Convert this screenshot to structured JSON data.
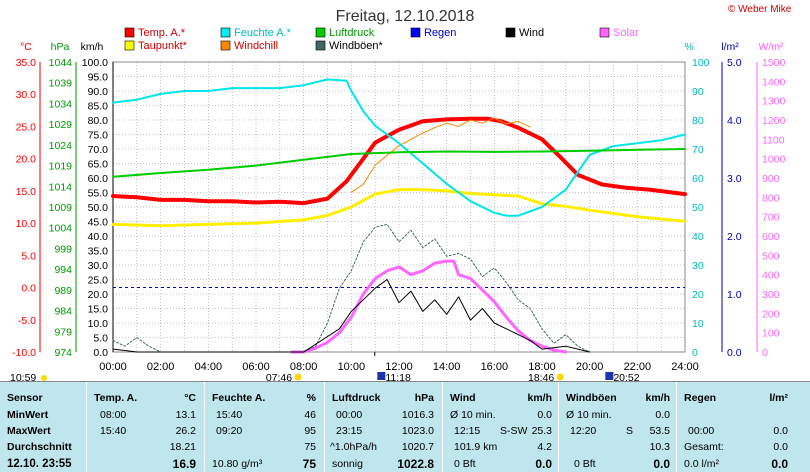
{
  "brand": "© Weber Mike",
  "chart_data": {
    "type": "line",
    "title": "Freitag, 12.10.2018",
    "x_range": [
      "00:00",
      "24:00"
    ],
    "x_ticks": [
      "00:00",
      "02:00",
      "04:00",
      "06:00",
      "08:00",
      "10:00",
      "12:00",
      "14:00",
      "16:00",
      "18:00",
      "20:00",
      "22:00",
      "24:00"
    ],
    "axes": {
      "temp": {
        "unit": "°C",
        "min": -10,
        "max": 35,
        "ticks": [
          "35.0",
          "30.0",
          "25.0",
          "20.0",
          "15.0",
          "10.0",
          "5.0",
          "0.0",
          "-5.0",
          "-10.0"
        ],
        "color": "#ff0000"
      },
      "pressure": {
        "unit": "hPa",
        "min": 974,
        "max": 1044,
        "ticks": [
          "1044",
          "1039",
          "1034",
          "1029",
          "1024",
          "1019",
          "1014",
          "1009",
          "1004",
          "999",
          "994",
          "989",
          "984",
          "979",
          "974"
        ],
        "color": "#00aa00"
      },
      "wind": {
        "unit": "km/h",
        "min": 0,
        "max": 100,
        "ticks": [
          "100.0",
          "95.0",
          "90.0",
          "85.0",
          "80.0",
          "75.0",
          "70.0",
          "65.0",
          "60.0",
          "55.0",
          "50.0",
          "45.0",
          "40.0",
          "35.0",
          "30.0",
          "25.0",
          "20.0",
          "15.0",
          "10.0",
          "5.0",
          "0.0"
        ],
        "color": "#000000"
      },
      "humidity": {
        "unit": "%",
        "min": 0,
        "max": 100,
        "ticks": [
          "100",
          "90",
          "80",
          "70",
          "60",
          "50",
          "40",
          "30",
          "20",
          "10",
          "0"
        ],
        "color": "#00cccc"
      },
      "rain": {
        "unit": "l/m²",
        "min": 0,
        "max": 5,
        "ticks": [
          "5.0",
          "4.0",
          "3.0",
          "2.0",
          "1.0",
          "0.0"
        ],
        "color": "#0000aa"
      },
      "solar": {
        "unit": "W/m²",
        "min": 0,
        "max": 1500,
        "ticks": [
          "1500",
          "1400",
          "1300",
          "1200",
          "1100",
          "1000",
          "900",
          "800",
          "700",
          "600",
          "500",
          "400",
          "300",
          "200",
          "100",
          "0"
        ],
        "color": "#ff66ff"
      }
    },
    "legend": [
      {
        "name": "Temp. A.*",
        "color": "#ff0000"
      },
      {
        "name": "Feuchte A.*",
        "color": "#00eeee"
      },
      {
        "name": "Luftdruck",
        "color": "#00cc00"
      },
      {
        "name": "Regen",
        "color": "#0000ff"
      },
      {
        "name": "Wind",
        "color": "#000000"
      },
      {
        "name": "Solar",
        "color": "#ff66ff"
      },
      {
        "name": "Taupunkt*",
        "color": "#ffff00"
      },
      {
        "name": "Windchill",
        "color": "#ff8800"
      },
      {
        "name": "Windböen*",
        "color": "#446666"
      }
    ],
    "series": [
      {
        "name": "Temp. A.*",
        "axis": "temp",
        "color": "#ff0000",
        "width": 4,
        "points": [
          [
            0,
            14.2
          ],
          [
            1,
            14
          ],
          [
            2,
            13.6
          ],
          [
            3,
            13.6
          ],
          [
            4,
            13.4
          ],
          [
            5,
            13.4
          ],
          [
            6,
            13.2
          ],
          [
            7,
            13.3
          ],
          [
            8,
            13.1
          ],
          [
            9,
            13.8
          ],
          [
            9.8,
            16.5
          ],
          [
            10.5,
            20
          ],
          [
            11,
            22.5
          ],
          [
            12,
            24.5
          ],
          [
            13,
            25.8
          ],
          [
            14,
            26.1
          ],
          [
            15,
            26.2
          ],
          [
            15.7,
            26.2
          ],
          [
            16.3,
            25.8
          ],
          [
            17,
            24.8
          ],
          [
            18,
            23
          ],
          [
            18.7,
            20.5
          ],
          [
            19.5,
            17.5
          ],
          [
            20.5,
            16
          ],
          [
            21.5,
            15.5
          ],
          [
            22.5,
            15.2
          ],
          [
            24,
            14.5
          ]
        ]
      },
      {
        "name": "Windchill",
        "axis": "temp",
        "color": "#ff8800",
        "width": 1,
        "points": [
          [
            10,
            14.8
          ],
          [
            10.5,
            16
          ],
          [
            11,
            19
          ],
          [
            11.5,
            20.5
          ],
          [
            12,
            22
          ],
          [
            12.5,
            23
          ],
          [
            13,
            24
          ],
          [
            13.5,
            24.8
          ],
          [
            14,
            25.5
          ],
          [
            14.5,
            25
          ],
          [
            15,
            26
          ],
          [
            15.5,
            25.5
          ],
          [
            16,
            26.3
          ],
          [
            16.5,
            25.4
          ],
          [
            17,
            25.8
          ],
          [
            17.5,
            24.9
          ]
        ]
      },
      {
        "name": "Taupunkt*",
        "axis": "temp",
        "color": "#ffee00",
        "width": 3,
        "points": [
          [
            0,
            9.8
          ],
          [
            2,
            9.6
          ],
          [
            4,
            9.8
          ],
          [
            6,
            10
          ],
          [
            8,
            10.5
          ],
          [
            9,
            11.2
          ],
          [
            10,
            12.5
          ],
          [
            11,
            14.5
          ],
          [
            12,
            15.2
          ],
          [
            13,
            15.2
          ],
          [
            14,
            15
          ],
          [
            15,
            14.6
          ],
          [
            16,
            14.4
          ],
          [
            17,
            14.2
          ],
          [
            18,
            13
          ],
          [
            19,
            12.6
          ],
          [
            20,
            12
          ],
          [
            22,
            11
          ],
          [
            24,
            10.3
          ]
        ]
      },
      {
        "name": "Feuchte A.*",
        "axis": "humidity",
        "color": "#00e5e5",
        "width": 2,
        "points": [
          [
            0,
            86
          ],
          [
            1,
            87
          ],
          [
            2,
            89
          ],
          [
            3,
            90
          ],
          [
            4,
            90
          ],
          [
            5,
            91
          ],
          [
            6,
            91
          ],
          [
            7,
            91
          ],
          [
            8,
            92
          ],
          [
            9,
            94
          ],
          [
            9.8,
            93.5
          ],
          [
            10,
            90
          ],
          [
            10.5,
            83
          ],
          [
            11,
            78
          ],
          [
            12,
            72
          ],
          [
            13,
            65
          ],
          [
            14,
            58
          ],
          [
            15,
            52
          ],
          [
            16,
            48
          ],
          [
            16.5,
            47
          ],
          [
            17,
            47
          ],
          [
            18,
            50
          ],
          [
            19,
            56
          ],
          [
            20,
            68
          ],
          [
            21,
            71
          ],
          [
            22,
            72
          ],
          [
            23,
            73
          ],
          [
            24,
            75
          ]
        ]
      },
      {
        "name": "Luftdruck",
        "axis": "pressure",
        "color": "#00cc00",
        "width": 2,
        "points": [
          [
            0,
            1016.3
          ],
          [
            2,
            1017.2
          ],
          [
            4,
            1018
          ],
          [
            6,
            1019
          ],
          [
            8,
            1020.4
          ],
          [
            10,
            1021.8
          ],
          [
            12,
            1022.2
          ],
          [
            14,
            1022.4
          ],
          [
            16,
            1022.3
          ],
          [
            18,
            1022.4
          ],
          [
            20,
            1022.6
          ],
          [
            22,
            1022.8
          ],
          [
            24,
            1023.0
          ]
        ]
      },
      {
        "name": "Solar",
        "axis": "solar",
        "color": "#ff66ff",
        "width": 3,
        "points": [
          [
            7.5,
            0
          ],
          [
            8,
            0
          ],
          [
            8.5,
            20
          ],
          [
            9,
            50
          ],
          [
            9.5,
            100
          ],
          [
            10,
            180
          ],
          [
            10.5,
            300
          ],
          [
            11,
            380
          ],
          [
            11.5,
            420
          ],
          [
            12,
            440
          ],
          [
            12.5,
            400
          ],
          [
            13,
            420
          ],
          [
            13.5,
            460
          ],
          [
            14,
            470
          ],
          [
            14.3,
            470
          ],
          [
            14.5,
            400
          ],
          [
            15,
            380
          ],
          [
            15.5,
            320
          ],
          [
            16,
            260
          ],
          [
            16.5,
            180
          ],
          [
            17,
            110
          ],
          [
            17.5,
            60
          ],
          [
            18,
            30
          ],
          [
            18.5,
            10
          ],
          [
            19,
            0
          ]
        ]
      },
      {
        "name": "Windböen*",
        "axis": "wind",
        "color": "#446666",
        "width": 1,
        "dash": "2,2",
        "points": [
          [
            0,
            4
          ],
          [
            0.5,
            2
          ],
          [
            1,
            5
          ],
          [
            1.5,
            2
          ],
          [
            2,
            0
          ],
          [
            8,
            0
          ],
          [
            8.5,
            2
          ],
          [
            9,
            10
          ],
          [
            9.5,
            22
          ],
          [
            10,
            28
          ],
          [
            10.5,
            38
          ],
          [
            11,
            43
          ],
          [
            11.5,
            44
          ],
          [
            12,
            38
          ],
          [
            12.5,
            42
          ],
          [
            13,
            36
          ],
          [
            13.5,
            39
          ],
          [
            14,
            33
          ],
          [
            14.5,
            34
          ],
          [
            15,
            32
          ],
          [
            15.5,
            26
          ],
          [
            16,
            29
          ],
          [
            16.5,
            24
          ],
          [
            17,
            18
          ],
          [
            17.5,
            15
          ],
          [
            18,
            8
          ],
          [
            18.5,
            3
          ],
          [
            19,
            6
          ],
          [
            19.5,
            2
          ],
          [
            20,
            0
          ]
        ]
      },
      {
        "name": "Wind",
        "axis": "wind",
        "color": "#000000",
        "width": 1,
        "points": [
          [
            0,
            1
          ],
          [
            1,
            0
          ],
          [
            8,
            0
          ],
          [
            9.5,
            8
          ],
          [
            10,
            14
          ],
          [
            10.5,
            18
          ],
          [
            11,
            22
          ],
          [
            11.5,
            25
          ],
          [
            12,
            17
          ],
          [
            12.5,
            21
          ],
          [
            13,
            14
          ],
          [
            13.5,
            18
          ],
          [
            14,
            13
          ],
          [
            14.5,
            19
          ],
          [
            15,
            11
          ],
          [
            15.5,
            15
          ],
          [
            16,
            10
          ],
          [
            16.5,
            8
          ],
          [
            17,
            6
          ],
          [
            17.5,
            4
          ],
          [
            18,
            1
          ],
          [
            19,
            2
          ],
          [
            20,
            0
          ]
        ]
      }
    ],
    "events": [
      {
        "time": "07:46",
        "icon": "sunrise"
      },
      {
        "time": "11:18",
        "icon": "moonrise"
      },
      {
        "time": "18:46",
        "icon": "sunset"
      },
      {
        "time": "20:52",
        "icon": "moonset"
      }
    ],
    "current_time": "10:59"
  },
  "table": {
    "sensor": {
      "header": "Sensor",
      "rows": [
        "MinWert",
        "MaxWert",
        "Durchschnitt"
      ],
      "datetime": "12.10. 23:55"
    },
    "temp": {
      "header": "Temp. A.",
      "unit": "°C",
      "min_time": "08:00",
      "min": "13.1",
      "max_time": "15:40",
      "max": "26.2",
      "avg": "18.21",
      "current": "16.9"
    },
    "humidity": {
      "header": "Feuchte A.",
      "unit": "%",
      "min_time": "15:40",
      "min": "46",
      "max_time": "09:20",
      "max": "95",
      "avg": "75",
      "abs": "10.80 g/m³",
      "current": "75"
    },
    "pressure": {
      "header": "Luftdruck",
      "unit": "hPa",
      "min_time": "00:00",
      "min": "1016.3",
      "max_time": "23:15",
      "max": "1023.0",
      "trend": "^1.0hPa/h",
      "avg": "1020.7",
      "forecast": "sonnig",
      "current": "1022.8"
    },
    "wind": {
      "header": "Wind",
      "unit": "km/h",
      "r1l": "Ø 10 min.",
      "r1v": "0.0",
      "r2l": "12:15",
      "r2m": "S-SW",
      "r2v": "25.3",
      "r3l": "101.9 km",
      "r3v": "4.2",
      "r4l": "0 Bft",
      "r4v": "0.0"
    },
    "gust": {
      "header": "Windböen",
      "unit": "km/h",
      "r1l": "Ø 10 min.",
      "r1v": "0.0",
      "r2l": "12:20",
      "r2m": "S",
      "r2v": "53.5",
      "r3v": "10.3",
      "r4l": "0 Bft",
      "r4v": "0.0"
    },
    "rain": {
      "header": "Regen",
      "unit": "l/m²",
      "r2l": "00:00",
      "r2v": "0.0",
      "r3l": "Gesamt:",
      "r3v": "0.0",
      "r4l": "0.0 l/m²",
      "r4v": "0.0"
    }
  }
}
